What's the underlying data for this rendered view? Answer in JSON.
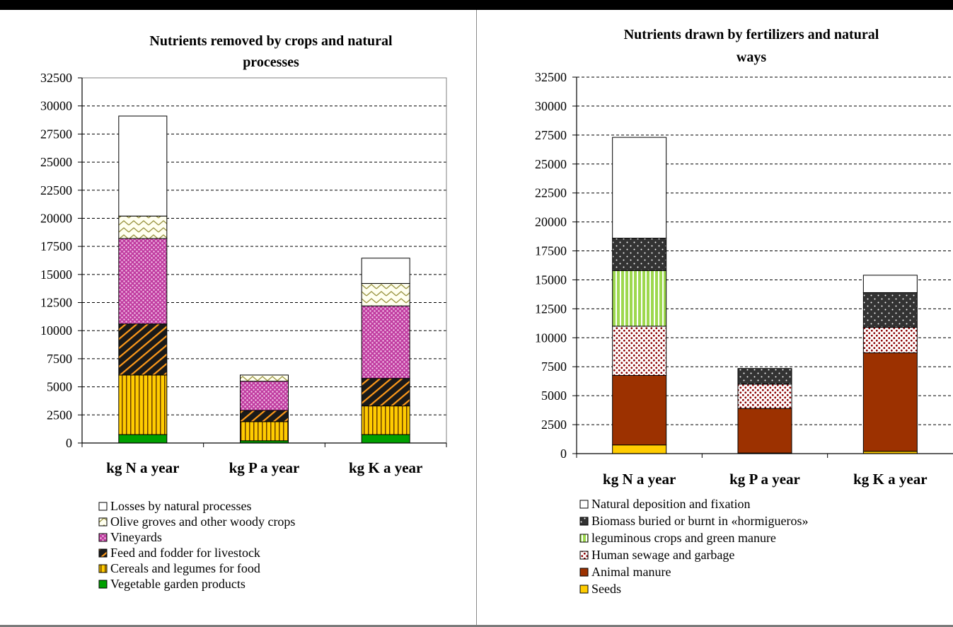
{
  "charts": [
    {
      "id": "chart-left",
      "title_lines": [
        "Nutrients removed by crops and natural",
        "processes"
      ],
      "y_ticks": [
        "0",
        "2500",
        "5000",
        "7500",
        "10000",
        "12500",
        "15000",
        "17500",
        "20000",
        "22500",
        "25000",
        "27500",
        "30000",
        "32500"
      ]
    },
    {
      "id": "chart-right",
      "title_lines": [
        "Nutrients drawn by fertilizers and natural",
        "ways"
      ],
      "y_ticks": [
        "0",
        "2500",
        "5000",
        "7500",
        "10000",
        "12500",
        "15000",
        "17500",
        "20000",
        "22500",
        "25000",
        "27500",
        "30000",
        "32500"
      ]
    }
  ],
  "chart_data": [
    {
      "type": "bar",
      "stacked": true,
      "title": "Nutrients removed by crops and natural processes",
      "categories": [
        "kg N a year",
        "kg P a year",
        "kg K a year"
      ],
      "ylim": [
        0,
        32500
      ],
      "grid": "dashed horizontal",
      "legend_position": "bottom",
      "series": [
        {
          "name": "Vegetable garden products",
          "values": [
            750,
            200,
            750
          ],
          "color": "#00a000",
          "pattern": "solid"
        },
        {
          "name": "Cereals and legumes for food",
          "values": [
            5300,
            1700,
            2550
          ],
          "color": "#ffcc00",
          "pattern": "vertical-lines"
        },
        {
          "name": "Feed and fodder for livestock",
          "values": [
            4550,
            1000,
            2450
          ],
          "color": "#1a1a1a",
          "pattern": "diagonal-orange"
        },
        {
          "name": "Vineyards",
          "values": [
            7600,
            2600,
            6450
          ],
          "color": "#c03ca0",
          "pattern": "dots"
        },
        {
          "name": "Olive groves and other woody crops",
          "values": [
            2000,
            550,
            2000
          ],
          "color": "#fffff0",
          "pattern": "zigzag"
        },
        {
          "name": "Losses by natural processes",
          "values": [
            8900,
            0,
            2250
          ],
          "color": "#ffffff",
          "pattern": "solid"
        }
      ]
    },
    {
      "type": "bar",
      "stacked": true,
      "title": "Nutrients drawn by fertilizers and natural ways",
      "categories": [
        "kg N a year",
        "kg P a year",
        "kg K a year"
      ],
      "ylim": [
        0,
        32500
      ],
      "grid": "dashed horizontal",
      "legend_position": "bottom",
      "series": [
        {
          "name": "Seeds",
          "values": [
            750,
            50,
            200
          ],
          "color": "#ffcc00",
          "pattern": "solid"
        },
        {
          "name": "Animal manure",
          "values": [
            6000,
            3850,
            8500
          ],
          "color": "#9c3100",
          "pattern": "solid"
        },
        {
          "name": "Human sewage and garbage",
          "values": [
            4250,
            2100,
            2200
          ],
          "color": "#ffffff",
          "pattern": "red-dots"
        },
        {
          "name": "leguminous crops and green manure",
          "values": [
            4800,
            0,
            0
          ],
          "color": "#9dd84e",
          "pattern": "vertical-lines"
        },
        {
          "name": "Biomass buried or burnt in «hormigueros»",
          "values": [
            2800,
            1350,
            3000
          ],
          "color": "#333333",
          "pattern": "white-dots"
        },
        {
          "name": "Natural deposition and fixation",
          "values": [
            8700,
            0,
            1500
          ],
          "color": "#ffffff",
          "pattern": "solid"
        }
      ]
    }
  ]
}
